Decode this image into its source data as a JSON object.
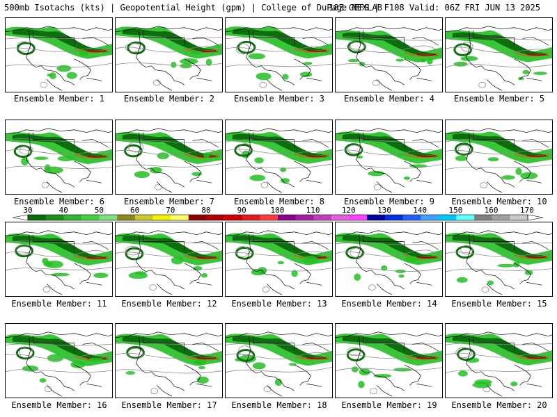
{
  "header": {
    "left": "500mb Isotachs (kts) | Geopotential Height (gpm) | College of DuPage NEXLAB",
    "right": "18Z GEFS | F108 Valid: 06Z FRI JUN 13 2025"
  },
  "panels": [
    {
      "label": "Ensemble Member: 1"
    },
    {
      "label": "Ensemble Member: 2"
    },
    {
      "label": "Ensemble Member: 3"
    },
    {
      "label": "Ensemble Member: 4"
    },
    {
      "label": "Ensemble Member: 5"
    },
    {
      "label": "Ensemble Member: 6"
    },
    {
      "label": "Ensemble Member: 7"
    },
    {
      "label": "Ensemble Member: 8"
    },
    {
      "label": "Ensemble Member: 9"
    },
    {
      "label": "Ensemble Member: 10"
    },
    {
      "label": "Ensemble Member: 11"
    },
    {
      "label": "Ensemble Member: 12"
    },
    {
      "label": "Ensemble Member: 13"
    },
    {
      "label": "Ensemble Member: 14"
    },
    {
      "label": "Ensemble Member: 15"
    },
    {
      "label": "Ensemble Member: 16"
    },
    {
      "label": "Ensemble Member: 17"
    },
    {
      "label": "Ensemble Member: 18"
    },
    {
      "label": "Ensemble Member: 19"
    },
    {
      "label": "Ensemble Member: 20"
    }
  ],
  "colorbar": {
    "tick_labels": [
      "30",
      "40",
      "50",
      "60",
      "70",
      "80",
      "90",
      "100",
      "110",
      "120",
      "130",
      "140",
      "150",
      "160",
      "170"
    ],
    "colors": [
      "#0a6b0a",
      "#1d8f1d",
      "#2fb52f",
      "#3fd43f",
      "#7fe07f",
      "#8a8a1e",
      "#c9c92a",
      "#f2f200",
      "#ffff60",
      "#8b0000",
      "#b00000",
      "#d00000",
      "#e81a1a",
      "#ff3c3c",
      "#8b008b",
      "#a020a0",
      "#c040c0",
      "#e060e0",
      "#ff40ff",
      "#0000a0",
      "#0030e0",
      "#2060ff",
      "#40a0ff",
      "#00c8ff",
      "#60ffff",
      "#808080",
      "#a0a0a0",
      "#c8c8c8"
    ]
  },
  "map_colors": {
    "isotach_light": "#22c022",
    "isotach_dark": "#0c6e0c",
    "isotach_mid": "#8a8a1e",
    "isotach_high": "#b00000",
    "height_contour": "#8a8a8a",
    "coastline": "#000000"
  }
}
